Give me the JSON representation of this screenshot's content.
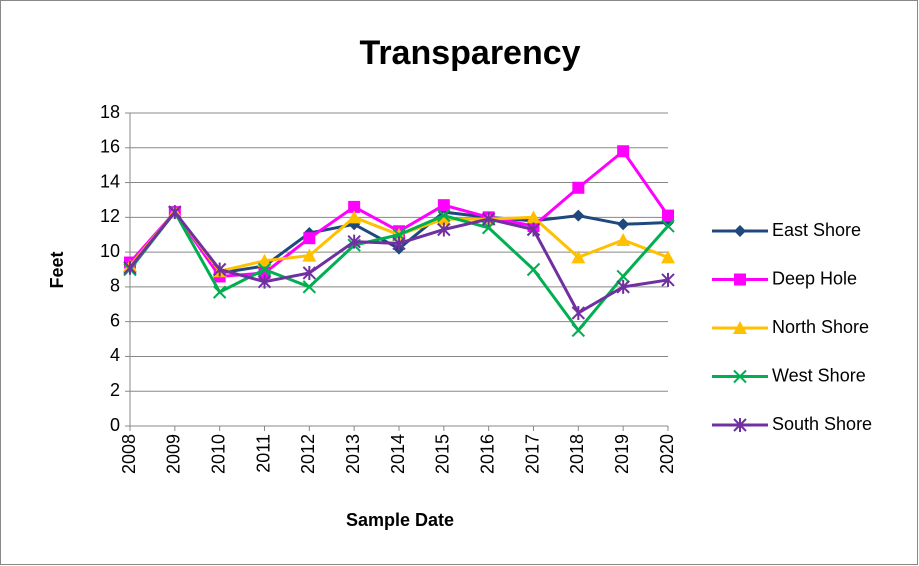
{
  "chart_data": {
    "type": "line",
    "title": "Transparency",
    "x_label": "Sample Date",
    "y_label": "Feet",
    "categories": [
      "2008",
      "2009",
      "2010",
      "2011",
      "2012",
      "2013",
      "2014",
      "2015",
      "2016",
      "2017",
      "2018",
      "2019",
      "2020"
    ],
    "series": [
      {
        "name": "East Shore",
        "color": "#1f497d",
        "marker": "diamond",
        "values": [
          9.2,
          12.3,
          8.8,
          9.2,
          11.1,
          11.6,
          10.2,
          12.3,
          12.0,
          11.8,
          12.1,
          11.6,
          11.7
        ]
      },
      {
        "name": "Deep Hole",
        "color": "#ff00ff",
        "marker": "square",
        "values": [
          9.4,
          12.3,
          8.6,
          8.8,
          10.8,
          12.6,
          11.2,
          12.7,
          12.0,
          11.5,
          13.7,
          15.8,
          12.1
        ]
      },
      {
        "name": "North Shore",
        "color": "#ffc000",
        "marker": "triangle",
        "values": [
          9.2,
          12.3,
          8.9,
          9.5,
          9.8,
          12.0,
          11.0,
          11.9,
          11.9,
          12.0,
          9.7,
          10.7,
          9.7
        ]
      },
      {
        "name": "West Shore",
        "color": "#00b050",
        "marker": "x",
        "values": [
          9.0,
          12.3,
          7.7,
          9.0,
          8.0,
          10.4,
          11.0,
          12.1,
          11.4,
          9.0,
          5.5,
          8.6,
          11.5
        ]
      },
      {
        "name": "South Shore",
        "color": "#7030a0",
        "marker": "star",
        "values": [
          9.1,
          12.3,
          9.0,
          8.3,
          8.8,
          10.6,
          10.5,
          11.3,
          11.9,
          11.3,
          6.5,
          8.0,
          8.4
        ]
      }
    ],
    "ylim": [
      0,
      18
    ],
    "yticks": [
      0,
      2,
      4,
      6,
      8,
      10,
      12,
      14,
      16,
      18
    ],
    "grid": true,
    "legend": "right"
  }
}
